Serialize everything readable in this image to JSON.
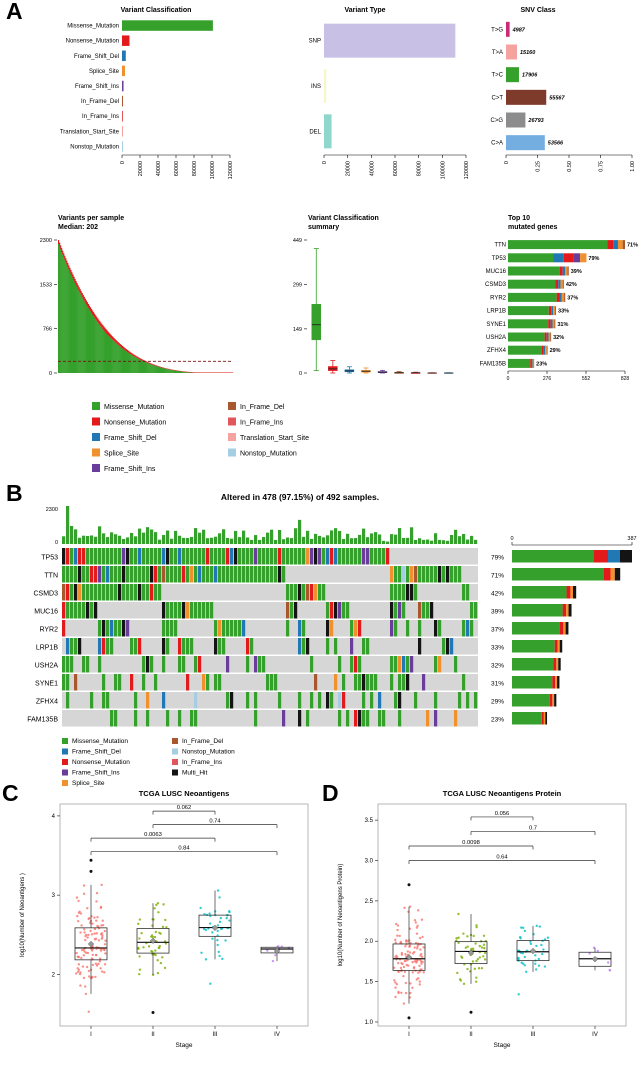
{
  "panel_labels": {
    "a": "A",
    "b": "B",
    "c": "C",
    "d": "D"
  },
  "palette": {
    "Missense_Mutation": "#35A12C",
    "Nonsense_Mutation": "#E31A1C",
    "Frame_Shift_Del": "#2079B4",
    "Splice_Site": "#F0912D",
    "Frame_Shift_Ins": "#6A3D9A",
    "In_Frame_Del": "#A9572E",
    "In_Frame_Ins": "#E0565B",
    "Translation_Start_Site": "#F4A39E",
    "Nonstop_Mutation": "#A6CEE3",
    "Multi_Hit": "#141414"
  },
  "stage_colors": {
    "I": "#F8766D",
    "II": "#7CAE00",
    "III": "#00BFC4",
    "IV": "#C77CFF"
  },
  "legend_a": {
    "col1": [
      "Missense_Mutation",
      "Nonsense_Mutation",
      "Frame_Shift_Del",
      "Splice_Site",
      "Frame_Shift_Ins"
    ],
    "col2": [
      "In_Frame_Del",
      "In_Frame_Ins",
      "Translation_Start_Site",
      "Nonstop_Mutation"
    ]
  },
  "legend_b": {
    "col1": [
      "Missense_Mutation",
      "Frame_Shift_Del",
      "Nonsense_Mutation",
      "Frame_Shift_Ins",
      "Splice_Site"
    ],
    "col2": [
      "In_Frame_Del",
      "Nonstop_Mutation",
      "In_Frame_Ins",
      "Multi_Hit"
    ]
  },
  "chart_data": [
    {
      "id": "variant_classification",
      "type": "bar",
      "orientation": "horizontal",
      "title": "Variant Classification",
      "categories": [
        "Missense_Mutation",
        "Nonsense_Mutation",
        "Frame_Shift_Del",
        "Splice_Site",
        "Frame_Shift_Ins",
        "In_Frame_Del",
        "In_Frame_Ins",
        "Translation_Start_Site",
        "Nonstop_Mutation"
      ],
      "values": [
        101000,
        8300,
        4200,
        3300,
        1700,
        900,
        450,
        300,
        200
      ],
      "xlim": [
        0,
        120000
      ],
      "xtick_values": [
        0,
        20000,
        40000,
        60000,
        80000,
        100000,
        120000
      ],
      "xtick_labels": [
        "0",
        "20000",
        "40000",
        "60000",
        "80000",
        "100000",
        "120000"
      ]
    },
    {
      "id": "variant_type",
      "type": "bar",
      "orientation": "horizontal",
      "title": "Variant Type",
      "categories": [
        "SNP",
        "INS",
        "DEL"
      ],
      "values": [
        111000,
        1900,
        6400
      ],
      "colors": [
        "#C9C0E5",
        "#F6F6C6",
        "#8FD7CC"
      ],
      "xlim": [
        0,
        120000
      ],
      "xtick_values": [
        0,
        20000,
        40000,
        60000,
        80000,
        100000,
        120000
      ],
      "xtick_labels": [
        "0",
        "20000",
        "40000",
        "60000",
        "80000",
        "100000",
        "120000"
      ]
    },
    {
      "id": "snv_class",
      "type": "bar",
      "orientation": "horizontal",
      "title": "SNV Class",
      "categories": [
        "T>G",
        "T>A",
        "T>C",
        "C>T",
        "C>G",
        "C>A"
      ],
      "values": [
        4987,
        15160,
        17906,
        55567,
        26793,
        53566
      ],
      "value_labels": [
        "4987",
        "15160",
        "17906",
        "55567",
        "26793",
        "53566"
      ],
      "colors": [
        "#CB2A77",
        "#F4A39E",
        "#35A12C",
        "#7E3B2C",
        "#8C8C8C",
        "#74AEE0"
      ],
      "xlim": [
        0,
        1
      ],
      "xtick_values": [
        0,
        0.25,
        0.5,
        0.75,
        1
      ],
      "xtick_labels": [
        "0",
        "0.25",
        "0.50",
        "0.75",
        "1.00"
      ]
    },
    {
      "id": "variants_per_sample",
      "type": "area",
      "title": "Variants per sample",
      "subtitle": "Median: 202",
      "median": 202,
      "ylim": [
        0,
        2300
      ],
      "ytick_values": [
        0,
        766,
        1533,
        2300
      ],
      "ytick_labels": [
        "0",
        "766",
        "1533",
        "2300"
      ]
    },
    {
      "id": "variant_classification_summary",
      "type": "boxplot",
      "title_line1": "Variant Classification",
      "title_line2": "summary",
      "ylim": [
        0,
        449
      ],
      "ytick_values": [
        0,
        149,
        299,
        449
      ],
      "ytick_labels": [
        "0",
        "149",
        "299",
        "449"
      ],
      "boxes": [
        {
          "key": "Missense_Mutation",
          "min": 8,
          "q1": 112,
          "med": 163,
          "q3": 232,
          "max": 420
        },
        {
          "key": "Nonsense_Mutation",
          "min": 0,
          "q1": 8,
          "med": 14,
          "q3": 22,
          "max": 42
        },
        {
          "key": "Frame_Shift_Del",
          "min": 0,
          "q1": 4,
          "med": 7,
          "q3": 11,
          "max": 21
        },
        {
          "key": "Splice_Site",
          "min": 0,
          "q1": 3,
          "med": 6,
          "q3": 9,
          "max": 17
        },
        {
          "key": "Frame_Shift_Ins",
          "min": 0,
          "q1": 1,
          "med": 3,
          "q3": 5,
          "max": 9
        },
        {
          "key": "In_Frame_Del",
          "min": 0,
          "q1": 0,
          "med": 1,
          "q3": 2,
          "max": 5
        },
        {
          "key": "In_Frame_Ins",
          "min": 0,
          "q1": 0,
          "med": 1,
          "q3": 1,
          "max": 3
        },
        {
          "key": "Translation_Start_Site",
          "min": 0,
          "q1": 0,
          "med": 0,
          "q3": 1,
          "max": 2
        },
        {
          "key": "Nonstop_Mutation",
          "min": 0,
          "q1": 0,
          "med": 0,
          "q3": 1,
          "max": 2
        }
      ]
    },
    {
      "id": "top_mutated_genes",
      "type": "bar",
      "title_line1": "Top 10",
      "title_line2": "mutated genes",
      "genes": [
        {
          "name": "TTN",
          "pct_label": "71%",
          "total": 828
        },
        {
          "name": "TP53",
          "pct_label": "79%",
          "total": 555
        },
        {
          "name": "MUC16",
          "pct_label": "39%",
          "total": 430
        },
        {
          "name": "CSMD3",
          "pct_label": "42%",
          "total": 395
        },
        {
          "name": "RYR2",
          "pct_label": "37%",
          "total": 405
        },
        {
          "name": "LRP1B",
          "pct_label": "33%",
          "total": 340
        },
        {
          "name": "SYNE1",
          "pct_label": "31%",
          "total": 335
        },
        {
          "name": "USH2A",
          "pct_label": "32%",
          "total": 305
        },
        {
          "name": "ZFHX4",
          "pct_label": "29%",
          "total": 280
        },
        {
          "name": "FAM135B",
          "pct_label": "23%",
          "total": 185
        }
      ],
      "xlim": [
        0,
        828
      ],
      "xtick_values": [
        0,
        276,
        552,
        828
      ],
      "xtick_labels": [
        "0",
        "276",
        "552",
        "828"
      ]
    },
    {
      "id": "oncoplot",
      "type": "heatmap",
      "title": "Altered in 478 (97.15%) of 492 samples.",
      "n_samples": 492,
      "tmb_axis": {
        "top_label": "2300",
        "bottom_label": "0",
        "max": 2300
      },
      "right_axis": {
        "left_label": "0",
        "right_label": "387",
        "max": 387
      },
      "genes": [
        {
          "name": "TP53",
          "pct": 79,
          "pct_label": "79%"
        },
        {
          "name": "TTN",
          "pct": 71,
          "pct_label": "71%"
        },
        {
          "name": "CSMD3",
          "pct": 42,
          "pct_label": "42%"
        },
        {
          "name": "MUC16",
          "pct": 39,
          "pct_label": "39%"
        },
        {
          "name": "RYR2",
          "pct": 37,
          "pct_label": "37%"
        },
        {
          "name": "LRP1B",
          "pct": 33,
          "pct_label": "33%"
        },
        {
          "name": "USH2A",
          "pct": 32,
          "pct_label": "32%"
        },
        {
          "name": "SYNE1",
          "pct": 31,
          "pct_label": "31%"
        },
        {
          "name": "ZFHX4",
          "pct": 29,
          "pct_label": "29%"
        },
        {
          "name": "FAM135B",
          "pct": 23,
          "pct_label": "23%"
        }
      ]
    },
    {
      "id": "neoantigens",
      "type": "scatter",
      "title": "TCGA LUSC Neoantigens",
      "ylabel": "log10(Number of Neoantigens )",
      "xlabel": "Stage",
      "stages": [
        "I",
        "II",
        "III",
        "IV"
      ],
      "n_points": [
        120,
        50,
        40,
        7
      ],
      "centers": [
        2.4,
        2.42,
        2.55,
        2.35
      ],
      "spreads": [
        0.3,
        0.24,
        0.26,
        0.12
      ],
      "ylim": [
        1.35,
        4.15
      ],
      "ytick_values": [
        2,
        3,
        4
      ],
      "ytick_labels": [
        "2",
        "3",
        "4"
      ],
      "outliers": {
        "I": [
          3.44,
          3.3
        ],
        "II": [
          1.52
        ]
      },
      "brackets": [
        {
          "from": "I",
          "to": "IV",
          "p": "0.84",
          "y": 3.55
        },
        {
          "from": "I",
          "to": "III",
          "p": "0.0063",
          "y": 3.72
        },
        {
          "from": "II",
          "to": "IV",
          "p": "0.74",
          "y": 3.89
        },
        {
          "from": "II",
          "to": "III",
          "p": "0.062",
          "y": 4.06
        }
      ]
    },
    {
      "id": "neoantigens_protein",
      "type": "scatter",
      "title": "TCGA LUSC Neoantigens Protein",
      "ylabel": "log10(Number of Neoantigens Protein)",
      "xlabel": "Stage",
      "stages": [
        "I",
        "II",
        "III",
        "IV"
      ],
      "n_points": [
        120,
        50,
        40,
        7
      ],
      "centers": [
        1.8,
        1.82,
        1.92,
        1.76
      ],
      "spreads": [
        0.26,
        0.2,
        0.22,
        0.1
      ],
      "ylim": [
        0.95,
        3.7
      ],
      "ytick_values": [
        1.0,
        1.5,
        2.0,
        2.5,
        3.0,
        3.5
      ],
      "ytick_labels": [
        "1.0",
        "1.5",
        "2.0",
        "2.5",
        "3.0",
        "3.5"
      ],
      "outliers": {
        "I": [
          2.7,
          1.05
        ],
        "II": [
          1.12
        ]
      },
      "brackets": [
        {
          "from": "I",
          "to": "IV",
          "p": "0.64",
          "y": 3.0
        },
        {
          "from": "I",
          "to": "III",
          "p": "0.0098",
          "y": 3.18
        },
        {
          "from": "II",
          "to": "IV",
          "p": "0.7",
          "y": 3.36
        },
        {
          "from": "II",
          "to": "III",
          "p": "0.056",
          "y": 3.54
        }
      ]
    }
  ]
}
